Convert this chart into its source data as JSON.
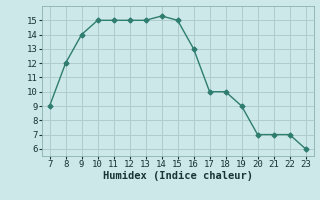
{
  "x": [
    7,
    8,
    9,
    10,
    11,
    12,
    13,
    14,
    15,
    16,
    17,
    18,
    19,
    20,
    21,
    22,
    23
  ],
  "y": [
    9,
    12,
    14,
    15,
    15,
    15,
    15,
    15.3,
    15,
    13,
    10,
    10,
    9,
    7,
    7,
    7,
    6
  ],
  "xlabel": "Humidex (Indice chaleur)",
  "line_color": "#2e7d6e",
  "bg_color": "#cce8e8",
  "grid_color": "#b0cccc",
  "xlim": [
    6.5,
    23.5
  ],
  "ylim": [
    5.5,
    16
  ],
  "yticks": [
    6,
    7,
    8,
    9,
    10,
    11,
    12,
    13,
    14,
    15
  ],
  "xticks": [
    7,
    8,
    9,
    10,
    11,
    12,
    13,
    14,
    15,
    16,
    17,
    18,
    19,
    20,
    21,
    22,
    23
  ],
  "tick_fontsize": 6.5,
  "xlabel_fontsize": 7.5
}
